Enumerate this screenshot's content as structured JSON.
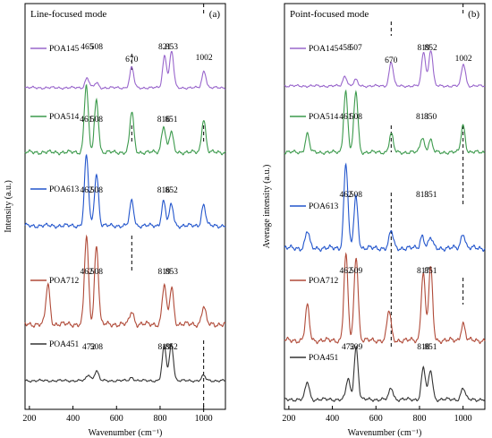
{
  "chart_data": [
    {
      "type": "line",
      "panel_label": "(a)",
      "mode_label": "Line-focused mode",
      "xlabel": "Wavenumber (cm⁻¹)",
      "ylabel": "Intensity (a.u.)",
      "xlim": [
        180,
        1100
      ],
      "xticks": [
        200,
        400,
        600,
        800,
        1000
      ],
      "dashed_reference_lines": [
        670,
        1000
      ],
      "series": [
        {
          "name": "POA145",
          "color": "#9966cc",
          "peaks": [
            [
              465,
              0.25
            ],
            [
              508,
              0.12
            ],
            [
              670,
              0.5
            ],
            [
              821,
              0.8
            ],
            [
              853,
              0.9
            ],
            [
              1002,
              0.42
            ]
          ],
          "peak_labels": [
            "465",
            "508",
            "670",
            "821",
            "853",
            "1002"
          ]
        },
        {
          "name": "POA514",
          "color": "#3c9a4c",
          "peaks": [
            [
              461,
              1.0
            ],
            [
              508,
              0.78
            ],
            [
              670,
              0.6
            ],
            [
              816,
              0.4
            ],
            [
              851,
              0.3
            ],
            [
              1000,
              0.5
            ]
          ],
          "peak_labels": [
            "461",
            "508",
            "816",
            "851"
          ]
        },
        {
          "name": "POA613",
          "color": "#2255cc",
          "peaks": [
            [
              462,
              1.0
            ],
            [
              508,
              0.75
            ],
            [
              670,
              0.35
            ],
            [
              816,
              0.35
            ],
            [
              852,
              0.3
            ],
            [
              1000,
              0.3
            ]
          ],
          "peak_labels": [
            "462",
            "508",
            "816",
            "852"
          ]
        },
        {
          "name": "POA712",
          "color": "#b04a38",
          "peaks": [
            [
              285,
              0.45
            ],
            [
              462,
              1.0
            ],
            [
              508,
              0.9
            ],
            [
              670,
              0.15
            ],
            [
              819,
              0.45
            ],
            [
              853,
              0.42
            ],
            [
              1000,
              0.2
            ]
          ],
          "peak_labels": [
            "462",
            "508",
            "819",
            "853"
          ]
        },
        {
          "name": "POA451",
          "color": "#333333",
          "peaks": [
            [
              472,
              0.15
            ],
            [
              508,
              0.25
            ],
            [
              670,
              0.08
            ],
            [
              819,
              0.85
            ],
            [
              852,
              0.9
            ],
            [
              1000,
              0.12
            ]
          ],
          "peak_labels": [
            "472",
            "508",
            "819",
            "852"
          ]
        }
      ]
    },
    {
      "type": "line",
      "panel_label": "(b)",
      "mode_label": "Point-focused mode",
      "xlabel": "Wavenumber (cm⁻¹)",
      "ylabel": "Average intensity (a.u.)",
      "xlim": [
        180,
        1100
      ],
      "xticks": [
        200,
        400,
        600,
        800,
        1000
      ],
      "dashed_reference_lines": [
        670,
        1000
      ],
      "series": [
        {
          "name": "POA145",
          "color": "#9966cc",
          "peaks": [
            [
              458,
              0.25
            ],
            [
              507,
              0.15
            ],
            [
              670,
              0.6
            ],
            [
              819,
              0.85
            ],
            [
              852,
              0.9
            ],
            [
              1002,
              0.55
            ]
          ],
          "peak_labels": [
            "458",
            "507",
            "670",
            "819",
            "852",
            "1002"
          ]
        },
        {
          "name": "POA514",
          "color": "#3c9a4c",
          "peaks": [
            [
              285,
              0.3
            ],
            [
              461,
              1.0
            ],
            [
              508,
              1.0
            ],
            [
              670,
              0.3
            ],
            [
              813,
              0.25
            ],
            [
              850,
              0.2
            ],
            [
              1000,
              0.45
            ]
          ],
          "peak_labels": [
            "461",
            "508",
            "813",
            "850"
          ]
        },
        {
          "name": "POA613",
          "color": "#2255cc",
          "peaks": [
            [
              285,
              0.2
            ],
            [
              462,
              1.0
            ],
            [
              508,
              0.6
            ],
            [
              670,
              0.2
            ],
            [
              813,
              0.15
            ],
            [
              851,
              0.12
            ],
            [
              1000,
              0.18
            ]
          ],
          "peak_labels": [
            "462",
            "508",
            "813",
            "851"
          ]
        },
        {
          "name": "POA712",
          "color": "#b04a38",
          "peaks": [
            [
              285,
              0.4
            ],
            [
              462,
              1.0
            ],
            [
              509,
              1.0
            ],
            [
              660,
              0.35
            ],
            [
              817,
              0.8
            ],
            [
              851,
              0.85
            ],
            [
              1000,
              0.2
            ]
          ],
          "peak_labels": [
            "462",
            "509",
            "817",
            "851"
          ]
        },
        {
          "name": "POA451",
          "color": "#333333",
          "peaks": [
            [
              285,
              0.3
            ],
            [
              472,
              0.35
            ],
            [
              509,
              0.9
            ],
            [
              670,
              0.2
            ],
            [
              818,
              0.55
            ],
            [
              851,
              0.5
            ],
            [
              1000,
              0.2
            ]
          ],
          "peak_labels": [
            "472",
            "509",
            "818",
            "851"
          ]
        }
      ]
    }
  ]
}
